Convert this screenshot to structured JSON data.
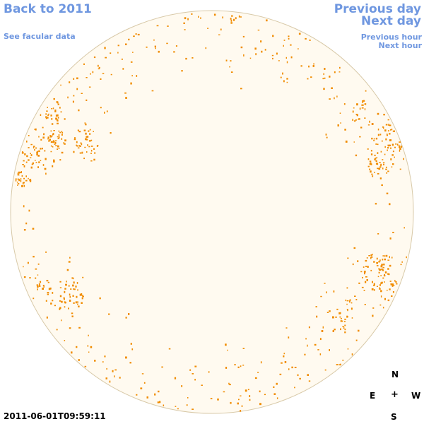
{
  "nav": {
    "back_label": "Back to 2011",
    "facular_label": "See facular data",
    "prev_day_label": "Previous day",
    "next_day_label": "Next day",
    "prev_hour_label": "Previous hour",
    "next_hour_label": "Next hour"
  },
  "compass": {
    "n": "N",
    "e": "E",
    "w": "W",
    "s": "S",
    "center": "+"
  },
  "timestamp": "2011-06-01T09:59:11",
  "colors": {
    "link": "#6f97e0",
    "disk_fill": "#fffaf0",
    "disk_stroke": "#d8c9a8",
    "facula": "#f08c00"
  }
}
